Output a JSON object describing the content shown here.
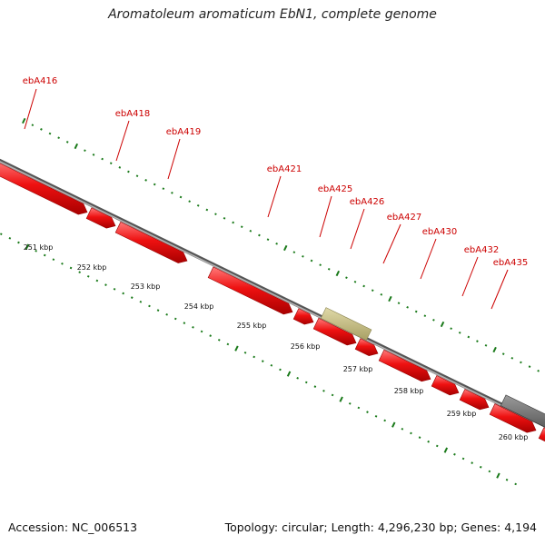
{
  "title": "Aromatoleum aromaticum EbN1, complete genome",
  "footer": {
    "accession": "Accession: NC_006513",
    "summary": "Topology: circular; Length: 4,296,230 bp; Genes: 4,194"
  },
  "colors": {
    "gene": "#ee1111",
    "gene_dark": "#aa0000",
    "gene_light": "#ff6a6a",
    "rna": "#c8c084",
    "pseudo": "#707070",
    "backbone": "#8a8a8a",
    "tick": "#1a7a1a",
    "label": "#cc0000"
  },
  "scale_labels": [
    "251 kbp",
    "252 kbp",
    "253 kbp",
    "254 kbp",
    "255 kbp",
    "256 kbp",
    "257 kbp",
    "258 kbp",
    "259 kbp",
    "260 kbp"
  ],
  "gene_labels": [
    "ebA416",
    "ebA418",
    "ebA419",
    "ebA421",
    "ebA425",
    "ebA426",
    "ebA427",
    "ebA430",
    "ebA432",
    "ebA435"
  ]
}
